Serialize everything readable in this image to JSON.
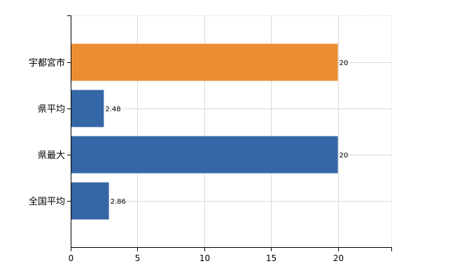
{
  "chart_data": {
    "type": "bar",
    "orientation": "horizontal",
    "categories": [
      "宇都宮市",
      "県平均",
      "県最大",
      "全国平均"
    ],
    "values": [
      20,
      2.48,
      20,
      2.86
    ],
    "value_labels": [
      "20",
      "2.48",
      "20",
      "2.86"
    ],
    "bar_colors": [
      "#ED8D32",
      "#3566A5",
      "#3566A5",
      "#3566A5"
    ],
    "xlim": [
      0,
      24
    ],
    "x_ticks": [
      0,
      5,
      10,
      15,
      20
    ],
    "x_tick_labels": [
      "0",
      "5",
      "10",
      "15",
      "20"
    ],
    "title": "",
    "xlabel": "",
    "ylabel": "",
    "grid": true,
    "legend": "none"
  }
}
